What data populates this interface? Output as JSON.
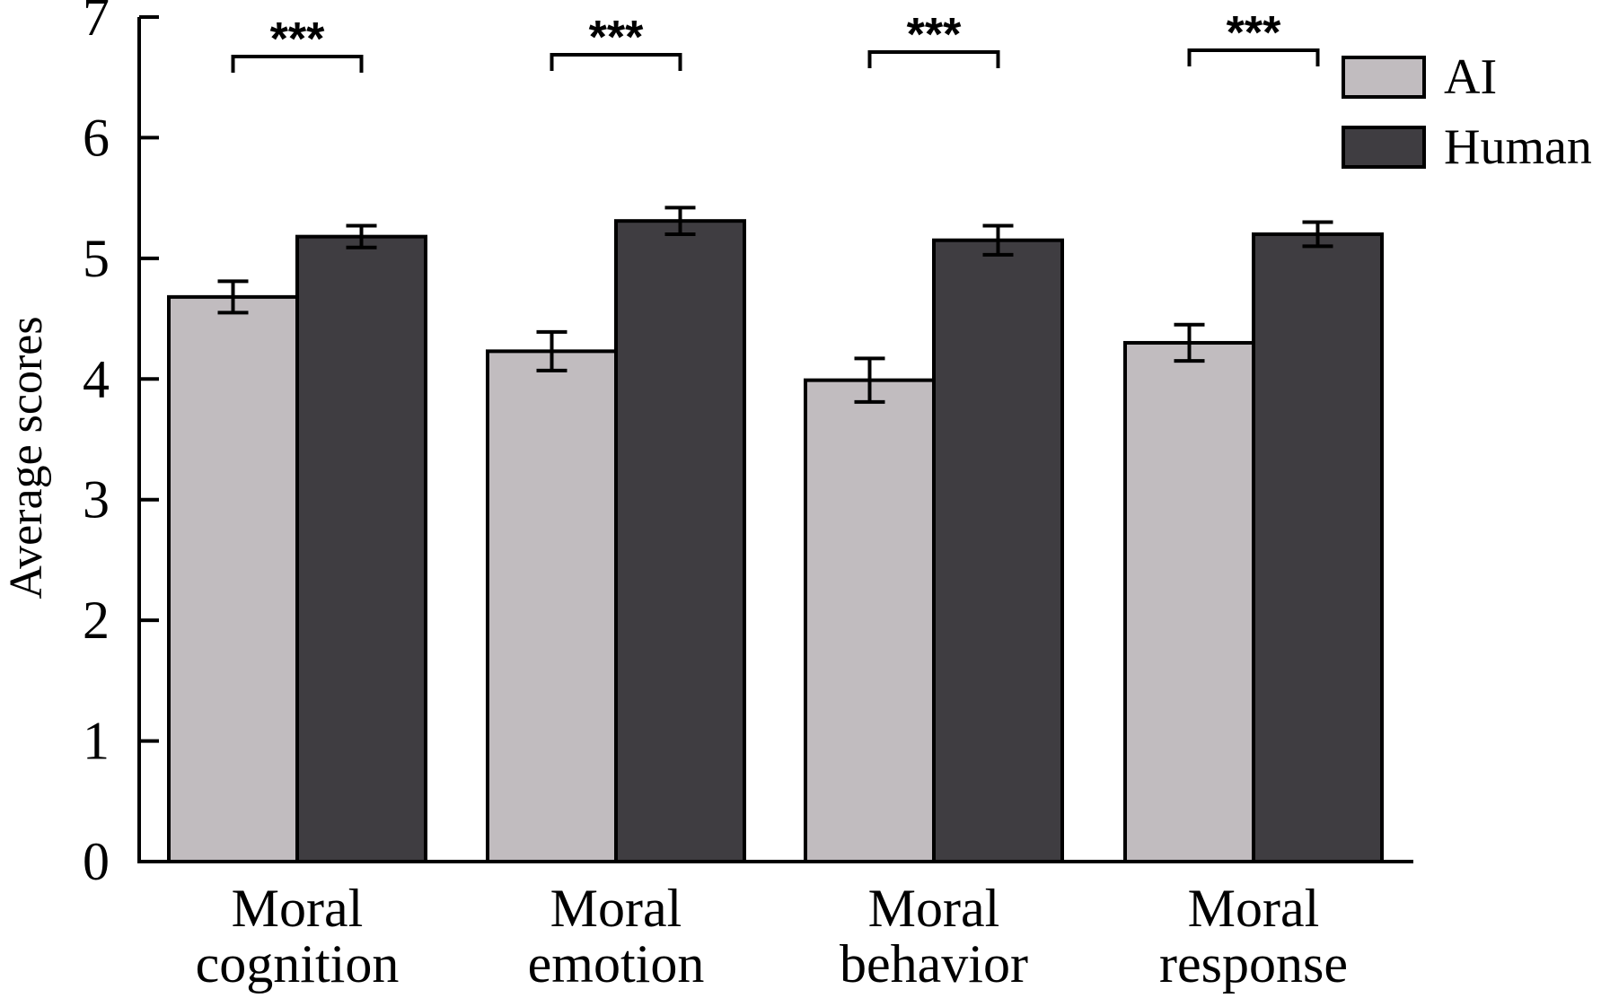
{
  "chart_data": {
    "type": "bar",
    "title": "",
    "xlabel": "",
    "ylabel": "Average scores",
    "ylim": [
      0,
      7
    ],
    "yticks": [
      0,
      1,
      2,
      3,
      4,
      5,
      6,
      7
    ],
    "grid": false,
    "legend_position": "top-right",
    "categories": [
      [
        "Moral",
        "cognition"
      ],
      [
        "Moral",
        "emotion"
      ],
      [
        "Moral",
        "behavior"
      ],
      [
        "Moral",
        "response"
      ]
    ],
    "series": [
      {
        "name": "AI",
        "color": "#c1bcbf",
        "values": [
          4.68,
          4.23,
          3.99,
          4.3
        ],
        "errors": [
          0.13,
          0.16,
          0.18,
          0.15
        ]
      },
      {
        "name": "Human",
        "color": "#3f3d41",
        "values": [
          5.18,
          5.31,
          5.15,
          5.2
        ],
        "errors": [
          0.09,
          0.11,
          0.12,
          0.1
        ]
      }
    ],
    "annotations": [
      {
        "category": 0,
        "text": "***"
      },
      {
        "category": 1,
        "text": "***"
      },
      {
        "category": 2,
        "text": "***"
      },
      {
        "category": 3,
        "text": "***"
      }
    ]
  }
}
